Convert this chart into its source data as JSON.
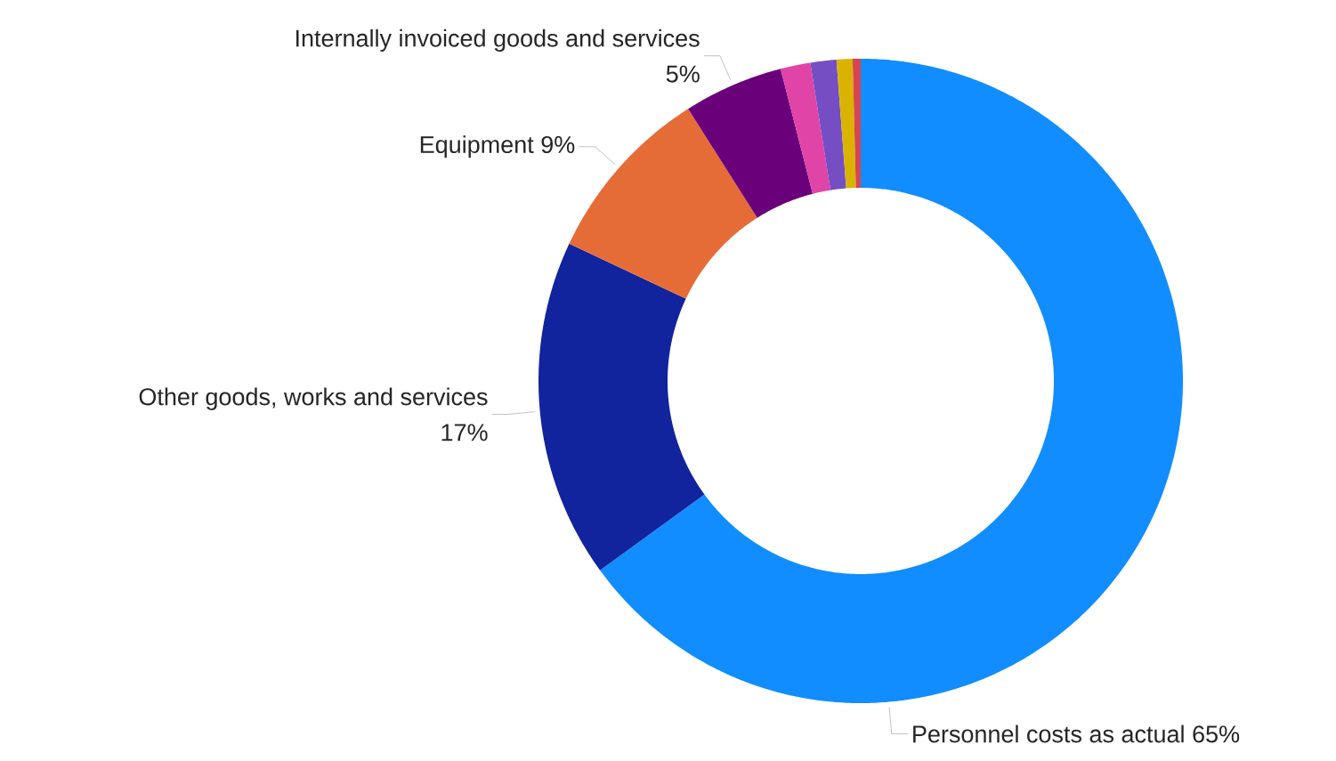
{
  "chart_data": {
    "type": "donut",
    "categories": [
      "Personnel costs as actual",
      "Other goods, works and services",
      "Equipment",
      "Internally invoiced goods and services",
      null,
      null,
      null,
      null
    ],
    "values": [
      65,
      17,
      9,
      5,
      1.5,
      1.3,
      0.8,
      0.4
    ],
    "value_labels": [
      "65%",
      "17%",
      "9%",
      "5%",
      null,
      null,
      null,
      null
    ],
    "colors": [
      "#118dff",
      "#12239e",
      "#e66c37",
      "#6b007b",
      "#e044a7",
      "#744ec2",
      "#d9b300",
      "#d64550"
    ]
  }
}
